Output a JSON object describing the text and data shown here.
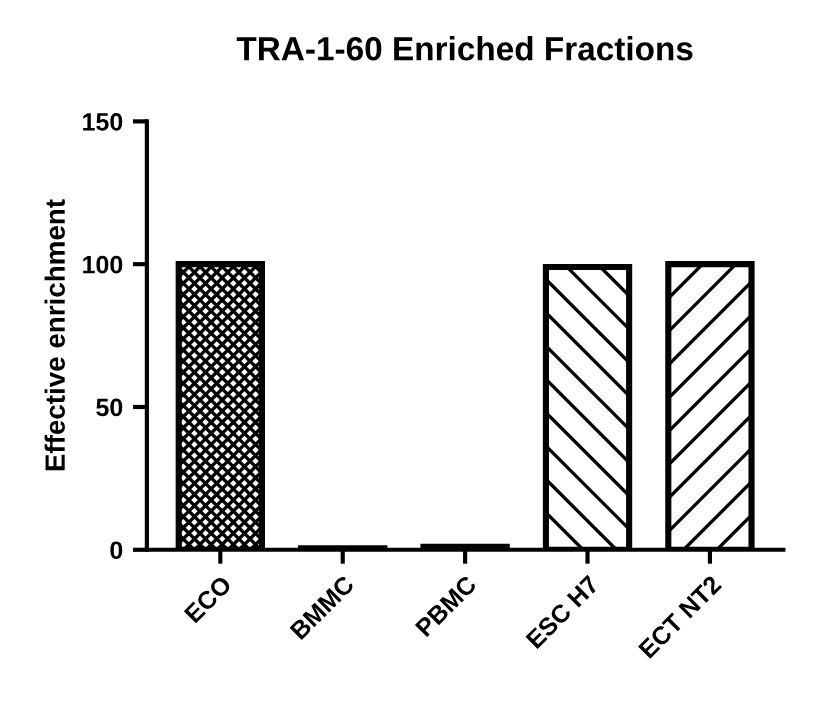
{
  "chart_data": {
    "type": "bar",
    "title": "TRA-1-60 Enriched Fractions",
    "ylabel": "Effective enrichment",
    "categories": [
      "ECO",
      "BMMC",
      "PBMC",
      "ESC H7",
      "ECT NT2"
    ],
    "values": [
      100,
      0.5,
      1,
      99,
      100
    ],
    "color": "#000000",
    "ylim": [
      0,
      150
    ],
    "yticks": [
      0,
      50,
      100,
      150
    ],
    "grid": false
  }
}
